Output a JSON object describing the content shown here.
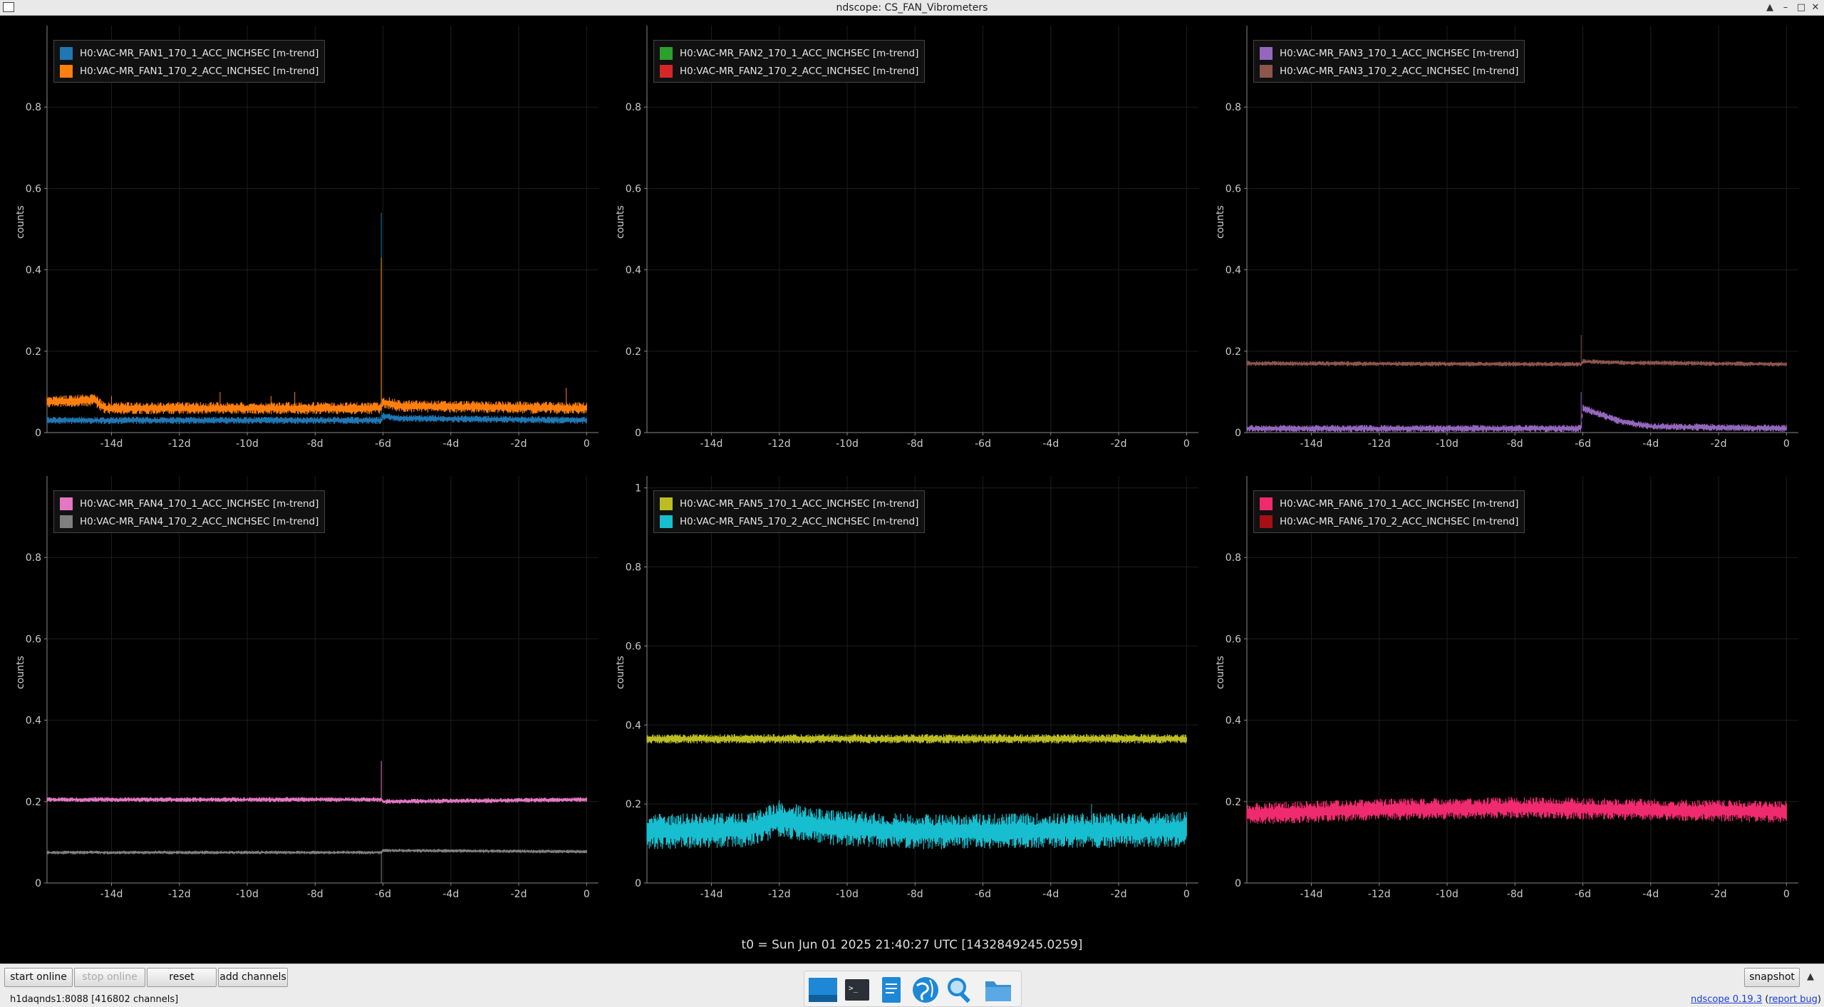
{
  "window": {
    "title": "ndscope: CS_FAN_Vibrometers"
  },
  "plots": [
    {
      "ylabel": "counts",
      "ylim": [
        0,
        1
      ],
      "yticks": [
        "0",
        "0.2",
        "0.4",
        "0.6",
        "0.8"
      ],
      "xticks": [
        "-14d",
        "-12d",
        "-10d",
        "-8d",
        "-6d",
        "-4d",
        "-2d",
        "0"
      ],
      "legend": [
        {
          "name": "H0:VAC-MR_FAN1_170_1_ACC_INCHSEC [m-trend]",
          "color": "#1f77b4"
        },
        {
          "name": "H0:VAC-MR_FAN1_170_2_ACC_INCHSEC [m-trend]",
          "color": "#ff7f0e"
        }
      ]
    },
    {
      "ylabel": "counts",
      "ylim": [
        0,
        1
      ],
      "yticks": [
        "0",
        "0.2",
        "0.4",
        "0.6",
        "0.8"
      ],
      "xticks": [
        "-14d",
        "-12d",
        "-10d",
        "-8d",
        "-6d",
        "-4d",
        "-2d",
        "0"
      ],
      "legend": [
        {
          "name": "H0:VAC-MR_FAN2_170_1_ACC_INCHSEC [m-trend]",
          "color": "#2ca02c"
        },
        {
          "name": "H0:VAC-MR_FAN2_170_2_ACC_INCHSEC [m-trend]",
          "color": "#d62728"
        }
      ]
    },
    {
      "ylabel": "counts",
      "ylim": [
        0,
        1
      ],
      "yticks": [
        "0",
        "0.2",
        "0.4",
        "0.6",
        "0.8"
      ],
      "xticks": [
        "-14d",
        "-12d",
        "-10d",
        "-8d",
        "-6d",
        "-4d",
        "-2d",
        "0"
      ],
      "legend": [
        {
          "name": "H0:VAC-MR_FAN3_170_1_ACC_INCHSEC [m-trend]",
          "color": "#9467bd"
        },
        {
          "name": "H0:VAC-MR_FAN3_170_2_ACC_INCHSEC [m-trend]",
          "color": "#8c564b"
        }
      ]
    },
    {
      "ylabel": "counts",
      "ylim": [
        0,
        1
      ],
      "yticks": [
        "0",
        "0.2",
        "0.4",
        "0.6",
        "0.8"
      ],
      "xticks": [
        "-14d",
        "-12d",
        "-10d",
        "-8d",
        "-6d",
        "-4d",
        "-2d",
        "0"
      ],
      "legend": [
        {
          "name": "H0:VAC-MR_FAN4_170_1_ACC_INCHSEC [m-trend]",
          "color": "#e377c2"
        },
        {
          "name": "H0:VAC-MR_FAN4_170_2_ACC_INCHSEC [m-trend]",
          "color": "#7f7f7f"
        }
      ]
    },
    {
      "ylabel": "counts",
      "ylim": [
        0,
        1.03
      ],
      "yticks": [
        "0",
        "0.2",
        "0.4",
        "0.6",
        "0.8",
        "1"
      ],
      "xticks": [
        "-14d",
        "-12d",
        "-10d",
        "-8d",
        "-6d",
        "-4d",
        "-2d",
        "0"
      ],
      "legend": [
        {
          "name": "H0:VAC-MR_FAN5_170_1_ACC_INCHSEC [m-trend]",
          "color": "#bcbd22"
        },
        {
          "name": "H0:VAC-MR_FAN5_170_2_ACC_INCHSEC [m-trend]",
          "color": "#17becf"
        }
      ]
    },
    {
      "ylabel": "counts",
      "ylim": [
        0,
        1
      ],
      "yticks": [
        "0",
        "0.2",
        "0.4",
        "0.6",
        "0.8"
      ],
      "xticks": [
        "-14d",
        "-12d",
        "-10d",
        "-8d",
        "-6d",
        "-4d",
        "-2d",
        "0"
      ],
      "legend": [
        {
          "name": "H0:VAC-MR_FAN6_170_1_ACC_INCHSEC [m-trend]",
          "color": "#f02a6e"
        },
        {
          "name": "H0:VAC-MR_FAN6_170_2_ACC_INCHSEC [m-trend]",
          "color": "#a50f15"
        }
      ]
    }
  ],
  "chart_data": [
    {
      "type": "line",
      "xlabel": "",
      "ylabel": "counts",
      "xlim": [
        -15.9,
        0.35
      ],
      "ylim": [
        0,
        1
      ],
      "series": [
        {
          "name": "H0:VAC-MR_FAN1_170_1_ACC_INCHSEC [m-trend]",
          "base": [
            [
              -15.9,
              0.03
            ],
            [
              -6.05,
              0.03
            ],
            [
              -6.0,
              0.04
            ],
            [
              -5.5,
              0.035
            ],
            [
              0,
              0.03
            ]
          ],
          "noise": 0.006,
          "spikes": [
            [
              -6.05,
              0.54
            ]
          ]
        },
        {
          "name": "H0:VAC-MR_FAN1_170_2_ACC_INCHSEC [m-trend]",
          "base": [
            [
              -15.9,
              0.075
            ],
            [
              -14.5,
              0.08
            ],
            [
              -14.2,
              0.06
            ],
            [
              -6.05,
              0.06
            ],
            [
              -6.0,
              0.075
            ],
            [
              -5.5,
              0.065
            ],
            [
              0,
              0.06
            ]
          ],
          "noise": 0.01,
          "spikes": [
            [
              -6.05,
              0.43
            ],
            [
              -14.0,
              0.09
            ],
            [
              -10.8,
              0.1
            ],
            [
              -9.3,
              0.09
            ],
            [
              -8.6,
              0.1
            ],
            [
              -0.6,
              0.11
            ]
          ]
        }
      ]
    },
    {
      "type": "line",
      "xlabel": "",
      "ylabel": "counts",
      "xlim": [
        -15.9,
        0.35
      ],
      "ylim": [
        0,
        1
      ],
      "series": [
        {
          "name": "H0:VAC-MR_FAN2_170_1_ACC_INCHSEC [m-trend]",
          "base": [
            [
              -15.9,
              0.001
            ],
            [
              0,
              0.001
            ]
          ],
          "noise": 0.0,
          "spikes": []
        },
        {
          "name": "H0:VAC-MR_FAN2_170_2_ACC_INCHSEC [m-trend]",
          "base": [
            [
              -15.9,
              0.001
            ],
            [
              0,
              0.001
            ]
          ],
          "noise": 0.0,
          "spikes": []
        }
      ]
    },
    {
      "type": "line",
      "xlabel": "",
      "ylabel": "counts",
      "xlim": [
        -15.9,
        0.35
      ],
      "ylim": [
        0,
        1
      ],
      "series": [
        {
          "name": "H0:VAC-MR_FAN3_170_1_ACC_INCHSEC [m-trend]",
          "base": [
            [
              -15.9,
              0.01
            ],
            [
              -6.05,
              0.01
            ],
            [
              -6.0,
              0.06
            ],
            [
              -5.0,
              0.03
            ],
            [
              -4.0,
              0.015
            ],
            [
              0,
              0.01
            ]
          ],
          "noise": 0.006,
          "spikes": [
            [
              -6.05,
              0.1
            ]
          ]
        },
        {
          "name": "H0:VAC-MR_FAN3_170_2_ACC_INCHSEC [m-trend]",
          "base": [
            [
              -15.9,
              0.17
            ],
            [
              -6.05,
              0.168
            ],
            [
              -6.0,
              0.175
            ],
            [
              -5.0,
              0.172
            ],
            [
              0,
              0.168
            ]
          ],
          "noise": 0.004,
          "spikes": [
            [
              -6.05,
              0.24
            ]
          ]
        }
      ]
    },
    {
      "type": "line",
      "xlabel": "",
      "ylabel": "counts",
      "xlim": [
        -15.9,
        0.35
      ],
      "ylim": [
        0,
        1
      ],
      "series": [
        {
          "name": "H0:VAC-MR_FAN4_170_1_ACC_INCHSEC [m-trend]",
          "base": [
            [
              -15.9,
              0.205
            ],
            [
              -6.05,
              0.205
            ],
            [
              -6.0,
              0.2
            ],
            [
              0,
              0.205
            ]
          ],
          "noise": 0.004,
          "spikes": [
            [
              -6.05,
              0.3
            ]
          ]
        },
        {
          "name": "H0:VAC-MR_FAN4_170_2_ACC_INCHSEC [m-trend]",
          "base": [
            [
              -15.9,
              0.075
            ],
            [
              -6.05,
              0.075
            ],
            [
              -6.0,
              0.08
            ],
            [
              0,
              0.077
            ]
          ],
          "noise": 0.003,
          "spikes": [
            [
              -6.05,
              0.0
            ]
          ]
        }
      ]
    },
    {
      "type": "line",
      "xlabel": "",
      "ylabel": "counts",
      "xlim": [
        -15.9,
        0.35
      ],
      "ylim": [
        0,
        1.03
      ],
      "series": [
        {
          "name": "H0:VAC-MR_FAN5_170_1_ACC_INCHSEC [m-trend]",
          "base": [
            [
              -15.9,
              0.365
            ],
            [
              0,
              0.365
            ]
          ],
          "noise": 0.008,
          "spikes": []
        },
        {
          "name": "H0:VAC-MR_FAN5_170_2_ACC_INCHSEC [m-trend]",
          "base": [
            [
              -15.9,
              0.13
            ],
            [
              -13.0,
              0.135
            ],
            [
              -12.0,
              0.16
            ],
            [
              -10.5,
              0.14
            ],
            [
              -8.0,
              0.13
            ],
            [
              0,
              0.135
            ]
          ],
          "noise": 0.03,
          "spikes": [
            [
              -12.0,
              0.21
            ],
            [
              -11.5,
              0.2
            ],
            [
              -2.8,
              0.2
            ]
          ]
        }
      ]
    },
    {
      "type": "line",
      "xlabel": "",
      "ylabel": "counts",
      "xlim": [
        -15.9,
        0.35
      ],
      "ylim": [
        0,
        1
      ],
      "series": [
        {
          "name": "H0:VAC-MR_FAN6_170_1_ACC_INCHSEC [m-trend]",
          "base": [
            [
              -15.9,
              0.17
            ],
            [
              -12,
              0.18
            ],
            [
              -8,
              0.185
            ],
            [
              -4,
              0.18
            ],
            [
              0,
              0.175
            ]
          ],
          "noise": 0.018,
          "spikes": []
        },
        {
          "name": "H0:VAC-MR_FAN6_170_2_ACC_INCHSEC [m-trend]",
          "base": [
            [
              -15.9,
              0.001
            ],
            [
              0,
              0.001
            ]
          ],
          "noise": 0.0,
          "spikes": []
        }
      ]
    }
  ],
  "t0_label": "t0 = Sun Jun 01 2025 21:40:27 UTC [1432849245.0259]",
  "toolbar": {
    "start_online": "start online",
    "stop_online": "stop online",
    "reset": "reset",
    "add_channels": "add channels",
    "snapshot": "snapshot"
  },
  "status": {
    "server": "h1daqnds1:8088  [416802 channels]",
    "version": "ndscope 0.19.3",
    "report": "report bug"
  },
  "taskbar": [
    "show-desktop-icon",
    "terminal-icon",
    "text-editor-icon",
    "web-browser-icon",
    "search-icon",
    "file-manager-icon"
  ]
}
